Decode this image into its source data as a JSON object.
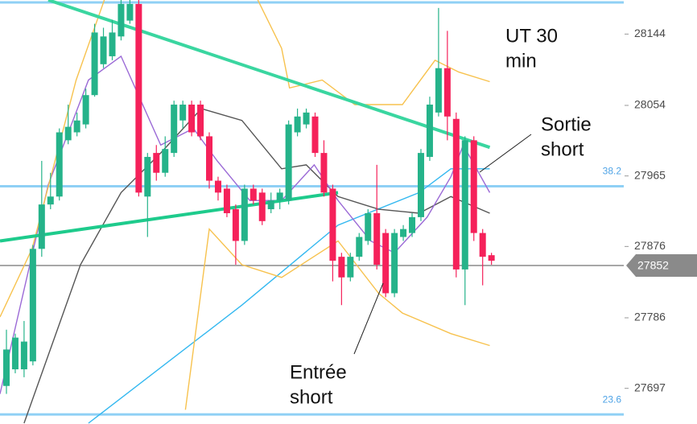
{
  "chart_data": {
    "type": "candlestick",
    "xlim": [
      -0.73,
      70.0
    ],
    "ylim": [
      27652,
      28187
    ],
    "yticks": [
      28144,
      28054,
      27965,
      27876,
      27786,
      27697
    ],
    "candles": {
      "up_color": "#25b38a",
      "down_color": "#f5215a",
      "open": [
        27700,
        27721,
        27721,
        27731,
        27873,
        27929,
        27939,
        28010,
        28020,
        28030,
        28067,
        28106,
        28116,
        28141,
        28161,
        28182,
        27939,
        27994,
        27969,
        27994,
        28035,
        28055,
        28055,
        28015,
        27959,
        27949,
        27923,
        27883,
        27949,
        27944,
        27923,
        27934,
        27934,
        28020,
        28030,
        28040,
        27994,
        27949,
        27863,
        27837,
        27863,
        27883,
        27918,
        27893,
        27817,
        27888,
        27893,
        27913,
        27989,
        28045,
        28101,
        28037,
        27847,
        28010,
        27893,
        27865
      ],
      "high": [
        27771,
        27766,
        27782,
        27878,
        27984,
        27969,
        28025,
        28055,
        28045,
        28075,
        28157,
        28152,
        28162,
        28187,
        28187,
        28187,
        27994,
        28004,
        28015,
        28060,
        28060,
        28060,
        28060,
        28020,
        27964,
        27954,
        27929,
        27954,
        27954,
        27949,
        27944,
        27949,
        28035,
        28050,
        28050,
        28045,
        28010,
        27954,
        27868,
        27868,
        27893,
        27923,
        27979,
        27898,
        27898,
        27903,
        27918,
        27999,
        28065,
        28177,
        28148,
        28045,
        28015,
        28015,
        27898,
        27868
      ],
      "low": [
        27690,
        27716,
        27711,
        27726,
        27863,
        27923,
        27934,
        28005,
        28015,
        28025,
        28065,
        28101,
        28111,
        28136,
        28157,
        27939,
        27888,
        27959,
        27964,
        27989,
        28025,
        28015,
        28010,
        27949,
        27934,
        27913,
        27853,
        27878,
        27929,
        27903,
        27918,
        27923,
        27929,
        28015,
        28025,
        27989,
        27939,
        27832,
        27802,
        27832,
        27858,
        27878,
        27847,
        27812,
        27812,
        27883,
        27888,
        27908,
        27984,
        28040,
        28010,
        27837,
        27802,
        27883,
        27827,
        27853
      ],
      "close": [
        27746,
        27761,
        27756,
        27873,
        27929,
        27939,
        28020,
        28027,
        28035,
        28067,
        28146,
        28141,
        28146,
        28182,
        28182,
        27944,
        27989,
        27969,
        27999,
        28055,
        28055,
        28020,
        28015,
        27959,
        27944,
        27918,
        27883,
        27949,
        27934,
        27908,
        27934,
        27944,
        28030,
        28040,
        28045,
        27994,
        27944,
        27858,
        27837,
        27863,
        27888,
        27918,
        27853,
        27817,
        27893,
        27898,
        27913,
        27994,
        28055,
        28101,
        28040,
        27847,
        28010,
        27893,
        27863,
        27858
      ]
    },
    "lines": [
      {
        "color": "#33b8f0",
        "x": [
          9.3,
          26.7,
          37.6,
          46.8,
          50.4,
          54.8
        ],
        "values": [
          27653,
          27802,
          27903,
          27944,
          27974,
          27974
        ]
      },
      {
        "color": "#555555",
        "x": [
          2.0,
          8.4,
          13.0,
          17.5,
          22.1,
          26.7,
          31.2,
          34.0,
          37.6,
          42.2,
          46.8,
          50.4,
          54.8
        ],
        "values": [
          27653,
          27853,
          27944,
          27994,
          28050,
          28035,
          27974,
          27979,
          27939,
          27923,
          27918,
          27939,
          27918
        ]
      },
      {
        "color": "#9b6ad6",
        "x": [
          -0.73,
          4.75,
          9.3,
          13.0,
          17.5,
          21.2,
          23.9,
          27.6,
          31.2,
          34.9,
          37.6,
          41.3,
          44.0,
          47.7,
          50.4,
          51.8,
          54.8
        ],
        "values": [
          27690,
          27954,
          28086,
          28116,
          28004,
          28025,
          27984,
          27934,
          27934,
          27979,
          27934,
          27883,
          27868,
          27913,
          27964,
          28004,
          27944
        ]
      },
      {
        "color": "#f7c24e",
        "x": [
          -0.73,
          2.9,
          7.9,
          11.1,
          20.0,
          28.5,
          31.2,
          32.1,
          35.8,
          39.5,
          44.9,
          48.6,
          51.3,
          54.8
        ],
        "values": [
          27787,
          27873,
          28086,
          28187,
          null,
          28187,
          28126,
          28076,
          28086,
          28055,
          28055,
          28111,
          28096,
          28084
        ]
      },
      {
        "color": "#f7c24e",
        "x": [
          20.3,
          23.0,
          26.7,
          31.2,
          37.6,
          42.2,
          44.9,
          50.4,
          54.8
        ],
        "values": [
          27670,
          27898,
          27853,
          27837,
          27883,
          27817,
          27792,
          27766,
          27751
        ]
      },
      {
        "color": "#1ecb8c",
        "x": [
          -0.73,
          37.6
        ],
        "values": [
          27883,
          27944
        ]
      },
      {
        "color": "#3ad6a0",
        "x": [
          4.75,
          54.8
        ],
        "values": [
          28187,
          28001
        ]
      }
    ],
    "levels": [
      {
        "value": 28184,
        "color": "#8fd0f5"
      },
      {
        "value": 27952,
        "label": "38.2",
        "color": "#8fd0f5"
      },
      {
        "value": 27664,
        "label": "23.6",
        "color": "#8fd0f5"
      }
    ],
    "last_price": {
      "value": 27852,
      "color": "#8a8a8a"
    },
    "annotations": [
      {
        "lines": [
          "UT 30",
          "min"
        ]
      },
      {
        "lines": [
          "Sortie",
          "short"
        ]
      },
      {
        "lines": [
          "Entrée",
          "short"
        ]
      }
    ]
  }
}
